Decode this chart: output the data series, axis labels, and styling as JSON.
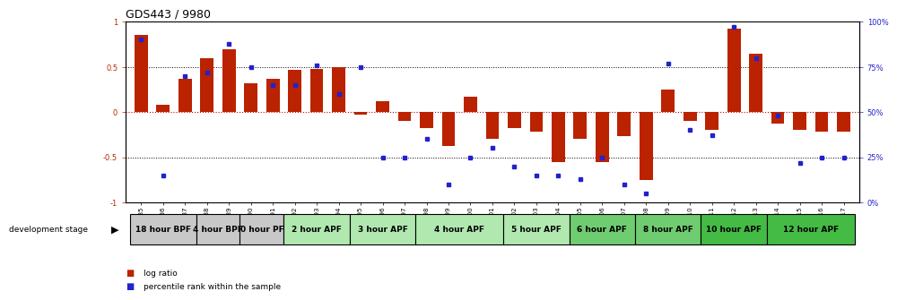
{
  "title": "GDS443 / 9980",
  "samples": [
    "GSM4585",
    "GSM4586",
    "GSM4587",
    "GSM4588",
    "GSM4589",
    "GSM4590",
    "GSM4591",
    "GSM4592",
    "GSM4593",
    "GSM4594",
    "GSM4595",
    "GSM4596",
    "GSM4597",
    "GSM4598",
    "GSM4599",
    "GSM4600",
    "GSM4601",
    "GSM4602",
    "GSM4603",
    "GSM4604",
    "GSM4605",
    "GSM4606",
    "GSM4607",
    "GSM4608",
    "GSM4609",
    "GSM4610",
    "GSM4611",
    "GSM4612",
    "GSM4613",
    "GSM4614",
    "GSM4615",
    "GSM4616",
    "GSM4617"
  ],
  "log_ratio": [
    0.85,
    0.08,
    0.37,
    0.6,
    0.7,
    0.32,
    0.37,
    0.47,
    0.48,
    0.5,
    -0.03,
    0.12,
    -0.1,
    -0.18,
    -0.38,
    0.17,
    -0.3,
    -0.18,
    -0.22,
    -0.55,
    -0.3,
    -0.55,
    -0.27,
    -0.75,
    0.25,
    -0.1,
    -0.2,
    0.92,
    0.65,
    -0.13,
    -0.2,
    -0.22,
    -0.22
  ],
  "percentile": [
    90,
    15,
    70,
    72,
    88,
    75,
    65,
    65,
    76,
    60,
    75,
    25,
    25,
    35,
    10,
    25,
    30,
    20,
    15,
    15,
    13,
    25,
    10,
    5,
    77,
    40,
    37,
    97,
    80,
    48,
    22,
    25,
    25
  ],
  "stages": [
    {
      "label": "18 hour BPF",
      "start": 0,
      "end": 3,
      "color": "#c8c8c8"
    },
    {
      "label": "4 hour BPF",
      "start": 3,
      "end": 5,
      "color": "#c8c8c8"
    },
    {
      "label": "0 hour PF",
      "start": 5,
      "end": 7,
      "color": "#c8c8c8"
    },
    {
      "label": "2 hour APF",
      "start": 7,
      "end": 10,
      "color": "#b0e8b0"
    },
    {
      "label": "3 hour APF",
      "start": 10,
      "end": 13,
      "color": "#b0e8b0"
    },
    {
      "label": "4 hour APF",
      "start": 13,
      "end": 17,
      "color": "#b0e8b0"
    },
    {
      "label": "5 hour APF",
      "start": 17,
      "end": 20,
      "color": "#b0e8b0"
    },
    {
      "label": "6 hour APF",
      "start": 20,
      "end": 23,
      "color": "#70cc70"
    },
    {
      "label": "8 hour APF",
      "start": 23,
      "end": 26,
      "color": "#70cc70"
    },
    {
      "label": "10 hour APF",
      "start": 26,
      "end": 29,
      "color": "#44bb44"
    },
    {
      "label": "12 hour APF",
      "start": 29,
      "end": 33,
      "color": "#44bb44"
    }
  ],
  "bar_color": "#bb2200",
  "dot_color": "#2222cc",
  "ylim_left": [
    -1.0,
    1.0
  ],
  "yticks_left": [
    -1,
    -0.5,
    0,
    0.5,
    1
  ],
  "ytick_labels_left": [
    "-1",
    "-0.5",
    "0",
    "0.5",
    "1"
  ],
  "yticks_right": [
    0,
    25,
    50,
    75,
    100
  ],
  "ytick_labels_right": [
    "0%",
    "25%",
    "50%",
    "75%",
    "100%"
  ],
  "legend_log": "log ratio",
  "legend_pct": "percentile rank within the sample",
  "bg_color": "#ffffff",
  "zero_line_color": "#cc0000",
  "dotted_color": "#000000",
  "stage_border_color": "#000000",
  "title_fontsize": 9,
  "tick_fontsize": 6,
  "sample_fontsize": 5,
  "stage_fontsize": 6.5
}
